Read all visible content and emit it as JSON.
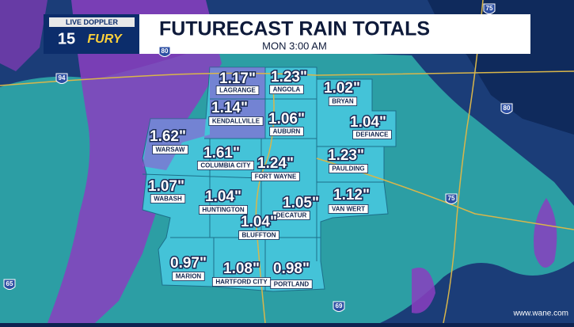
{
  "header": {
    "logo": {
      "top": "LIVE DOPPLER",
      "number": "15",
      "brand": "FURY"
    },
    "title": "FUTURECAST RAIN TOTALS",
    "subtitle": "MON 3:00 AM"
  },
  "counties": [
    {
      "name": "LAGRANGE",
      "total": "1.17\""
    },
    {
      "name": "ANGOLA",
      "total": "1.23\""
    },
    {
      "name": "BRYAN",
      "total": "1.02\""
    },
    {
      "name": "KENDALLVILLE",
      "total": "1.14\""
    },
    {
      "name": "AUBURN",
      "total": "1.06\""
    },
    {
      "name": "DEFIANCE",
      "total": "1.04\""
    },
    {
      "name": "WARSAW",
      "total": "1.62\""
    },
    {
      "name": "COLUMBIA CITY",
      "total": "1.61\""
    },
    {
      "name": "FORT WAYNE",
      "total": "1.24\""
    },
    {
      "name": "PAULDING",
      "total": "1.23\""
    },
    {
      "name": "WABASH",
      "total": "1.07\""
    },
    {
      "name": "HUNTINGTON",
      "total": "1.04\""
    },
    {
      "name": "DECATUR",
      "total": "1.05\""
    },
    {
      "name": "VAN WERT",
      "total": "1.12\""
    },
    {
      "name": "BLUFFTON",
      "total": "1.04\""
    },
    {
      "name": "MARION",
      "total": "0.97\""
    },
    {
      "name": "HARTFORD CITY",
      "total": "1.08\""
    },
    {
      "name": "PORTLAND",
      "total": "0.98\""
    }
  ],
  "highways": [
    "94",
    "80",
    "80",
    "75",
    "75",
    "65",
    "69"
  ],
  "watermark": "www.wane.com"
}
